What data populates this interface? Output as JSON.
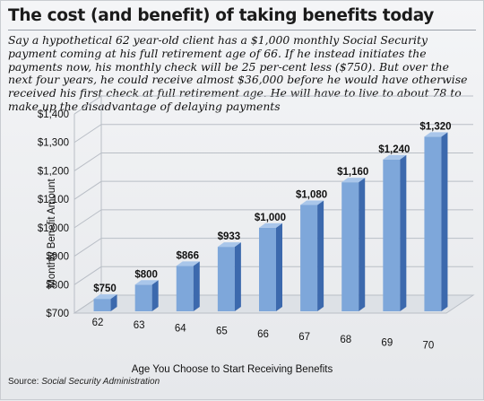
{
  "header": {
    "title": "The cost (and benefit) of taking benefits today"
  },
  "intro_text": "Say a hypothetical 62 year-old client has a $1,000 monthly Social Security payment coming at his full retirement age of 66. If he instead initiates the  payments now, his monthly check will be 25 per-cent less ($750). But over the next four years, he could receive almost $36,000 before he would have otherwise received his first check at full retirement age. He will have to live to about 78 to make up the disadvantage of delaying payments",
  "source": {
    "label": "Source: ",
    "text": "Social Security Administration"
  },
  "colors": {
    "bar_front": "#7ea7da",
    "bar_side": "#3c69ad",
    "bar_top": "#a9c6ea",
    "grid": "#b9bec6"
  },
  "chart_data": {
    "type": "bar",
    "categories": [
      "62",
      "63",
      "64",
      "65",
      "66",
      "67",
      "68",
      "69",
      "70"
    ],
    "values": [
      750,
      800,
      866,
      933,
      1000,
      1080,
      1160,
      1240,
      1320
    ],
    "value_labels": [
      "$750",
      "$800",
      "$866",
      "$933",
      "$1,000",
      "$1,080",
      "$1,160",
      "$1,240",
      "$1,320"
    ],
    "y_ticks": [
      700,
      800,
      900,
      1000,
      1100,
      1200,
      1300,
      1400
    ],
    "y_tick_labels": [
      "$700",
      "$800",
      "$900",
      "$1,000",
      "$1,100",
      "$1,200",
      "$1,300",
      "$1,400"
    ],
    "ylim": [
      700,
      1400
    ],
    "xlabel": "Age You Choose to Start Receiving Benefits",
    "ylabel": "Monthly Benefit Amount",
    "grid": true,
    "style": "3d"
  }
}
